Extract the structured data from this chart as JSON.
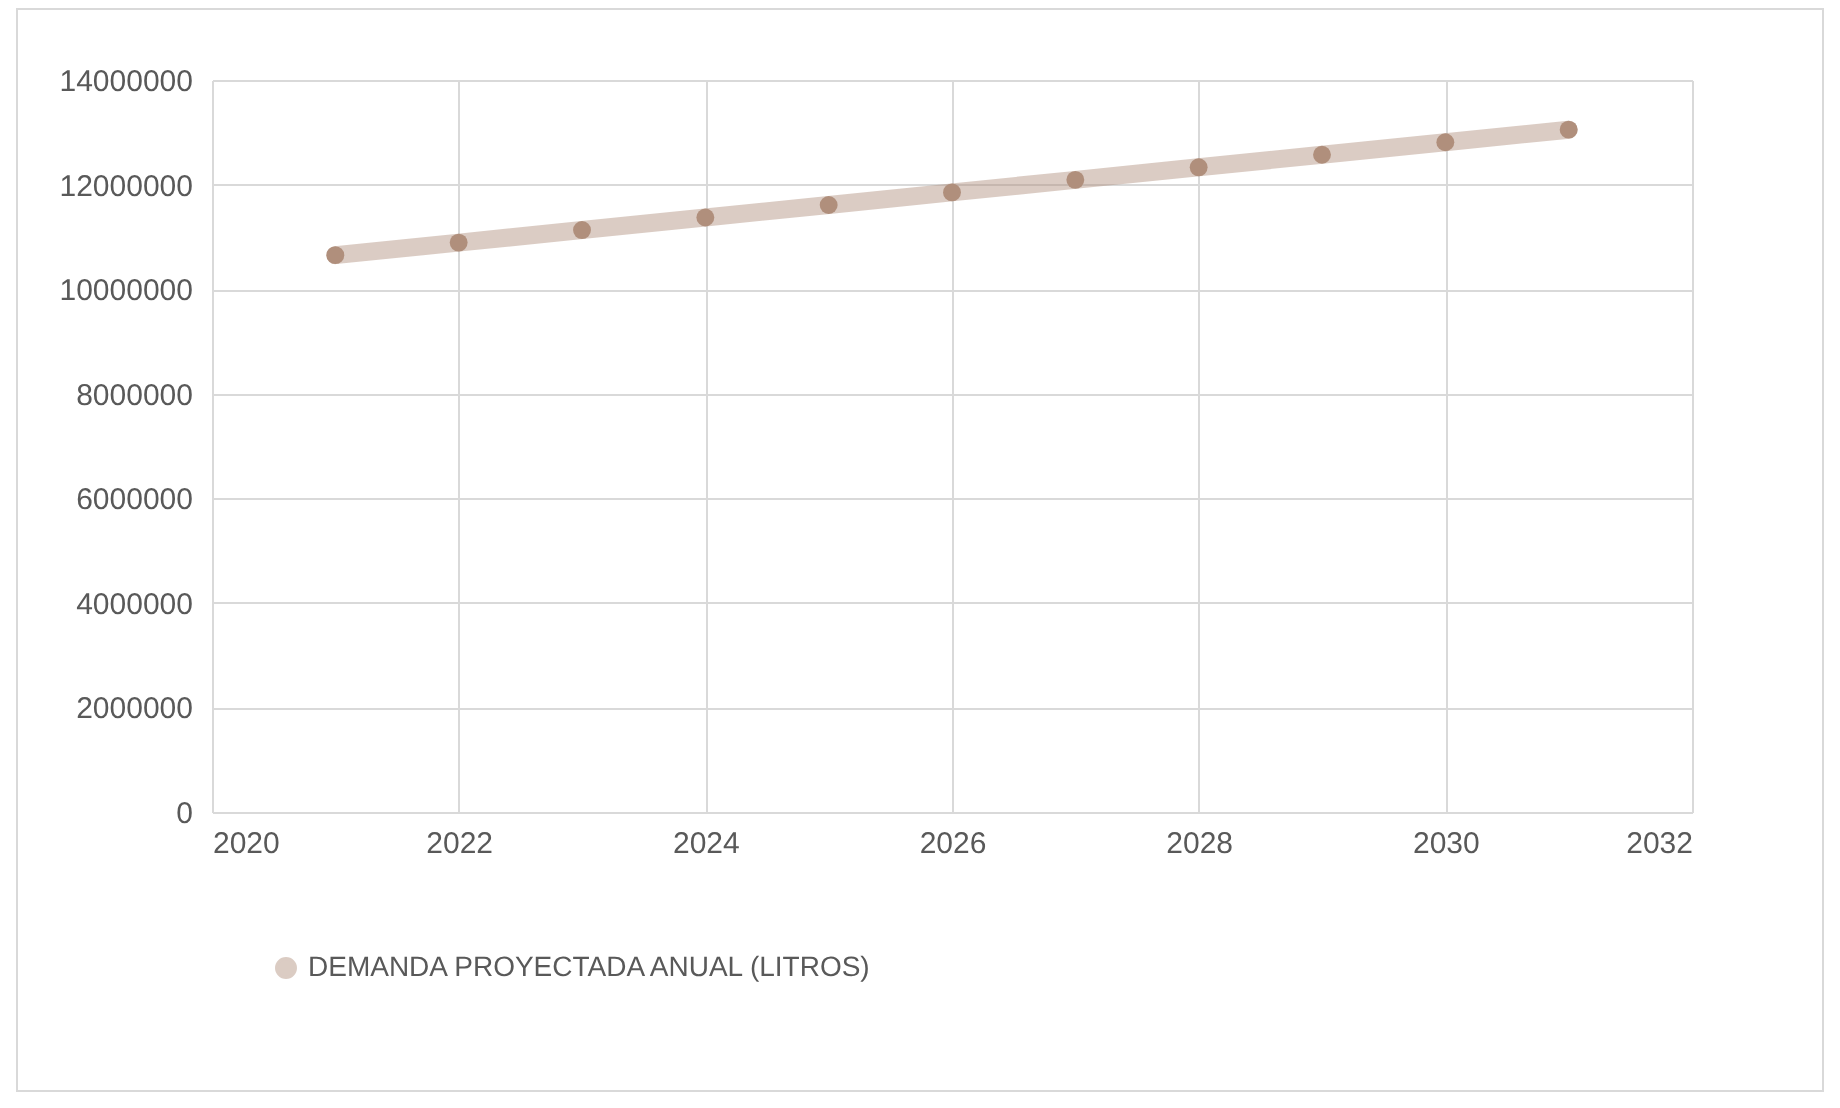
{
  "chart_data": {
    "type": "line",
    "x": [
      2021,
      2022,
      2023,
      2024,
      2025,
      2026,
      2027,
      2028,
      2029,
      2030,
      2031
    ],
    "series": [
      {
        "name": "DEMANDA PROYECTADA ANUAL (LITROS)",
        "color": "#b08f7c",
        "values": [
          10650000,
          10890000,
          11130000,
          11370000,
          11610000,
          11850000,
          12090000,
          12330000,
          12570000,
          12810000,
          13050000
        ]
      }
    ],
    "xlim": [
      2020,
      2032
    ],
    "xticks": [
      2020,
      2022,
      2024,
      2026,
      2028,
      2030,
      2032
    ],
    "ylim": [
      0,
      14000000
    ],
    "yticks": [
      0,
      2000000,
      4000000,
      6000000,
      8000000,
      10000000,
      12000000,
      14000000
    ],
    "grid": true,
    "legend": "bottom",
    "marker": "circle",
    "line_style": "solid"
  }
}
